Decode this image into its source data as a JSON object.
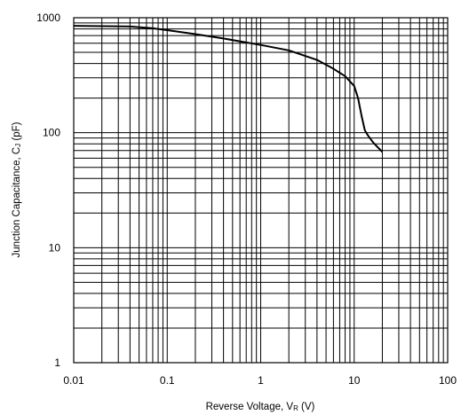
{
  "chart_data": {
    "type": "line",
    "xscale": "log",
    "yscale": "log",
    "xlim": [
      0.01,
      100
    ],
    "ylim": [
      1,
      1000
    ],
    "grid": true,
    "xlabel": {
      "main": "Reverse Voltage, V",
      "sub": "R",
      "unit": " (V)"
    },
    "ylabel": {
      "main": "Junction Capacitance, C",
      "sub": "J",
      "unit": " (pF)"
    },
    "x_tick_labels": [
      "0.01",
      "0.1",
      "1",
      "10",
      "100"
    ],
    "y_tick_labels": [
      "1",
      "10",
      "100",
      "1000"
    ],
    "series": [
      {
        "x": [
          0.01,
          0.02,
          0.04,
          0.07,
          0.1,
          0.2,
          0.4,
          0.7,
          1,
          2,
          4,
          6,
          8,
          10,
          11,
          12,
          13,
          14,
          16,
          20
        ],
        "y": [
          850,
          845,
          840,
          810,
          780,
          720,
          660,
          610,
          580,
          520,
          430,
          360,
          310,
          255,
          200,
          140,
          105,
          95,
          82,
          68
        ]
      }
    ]
  },
  "colors": {
    "curve": "#000000",
    "grid": "#000000",
    "background": "#ffffff"
  }
}
